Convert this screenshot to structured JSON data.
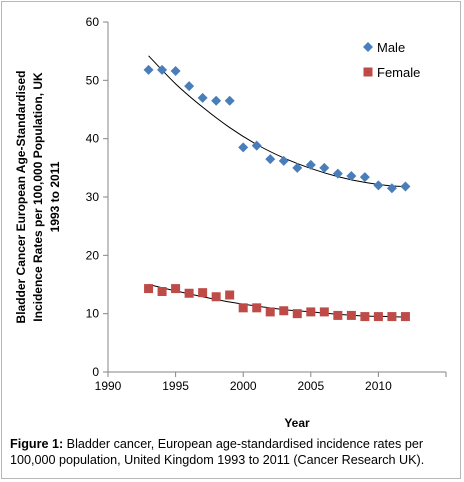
{
  "chart_data": {
    "type": "scatter",
    "xlabel": "Year",
    "ylabel_lines": [
      "Bladder Cancer European Age-Standardised",
      "Incidence Rates per 100,000 Population, UK",
      "1993 to 2011"
    ],
    "xlim": [
      1990,
      2015
    ],
    "ylim": [
      0,
      60
    ],
    "xticks": [
      1990,
      1995,
      2000,
      2005,
      2010
    ],
    "yticks": [
      0,
      10,
      20,
      30,
      40,
      50,
      60
    ],
    "grid": false,
    "legend_position": "top-right",
    "series": [
      {
        "name": "Male",
        "color": "#4a7ebb",
        "marker": "diamond",
        "x": [
          1993,
          1994,
          1995,
          1996,
          1997,
          1998,
          1999,
          2000,
          2001,
          2002,
          2003,
          2004,
          2005,
          2006,
          2007,
          2008,
          2009,
          2010,
          2011,
          2012
        ],
        "y": [
          51.8,
          51.8,
          51.6,
          49.0,
          47.0,
          46.5,
          46.5,
          38.5,
          38.8,
          36.5,
          36.2,
          35.0,
          35.5,
          35.0,
          34.0,
          33.6,
          33.4,
          32.0,
          31.5,
          31.8
        ],
        "trendline_x": [
          1993,
          1995,
          1997,
          1999,
          2001,
          2003,
          2005,
          2007,
          2009,
          2011,
          2012
        ],
        "trendline_y": [
          54.2,
          49.4,
          45.4,
          41.9,
          39.0,
          36.7,
          34.9,
          33.5,
          32.5,
          31.9,
          31.8
        ]
      },
      {
        "name": "Female",
        "color": "#be4b48",
        "marker": "square",
        "x": [
          1993,
          1994,
          1995,
          1996,
          1997,
          1998,
          1999,
          2000,
          2001,
          2002,
          2003,
          2004,
          2005,
          2006,
          2007,
          2008,
          2009,
          2010,
          2011,
          2012
        ],
        "y": [
          14.3,
          13.8,
          14.3,
          13.5,
          13.6,
          12.9,
          13.2,
          11.0,
          11.0,
          10.3,
          10.5,
          10.0,
          10.3,
          10.3,
          9.7,
          9.7,
          9.5,
          9.5,
          9.5,
          9.5
        ],
        "trendline_x": [
          1993,
          1995,
          1997,
          1999,
          2001,
          2003,
          2005,
          2007,
          2009,
          2011,
          2012
        ],
        "trendline_y": [
          15.0,
          13.9,
          12.9,
          12.0,
          11.3,
          10.7,
          10.3,
          9.9,
          9.6,
          9.5,
          9.4
        ]
      }
    ]
  },
  "caption": {
    "label": "Figure 1:",
    "text": " Bladder cancer, European age-standardised incidence rates per 100,000 population, United Kingdom 1993 to 2011 (Cancer Research UK)."
  }
}
